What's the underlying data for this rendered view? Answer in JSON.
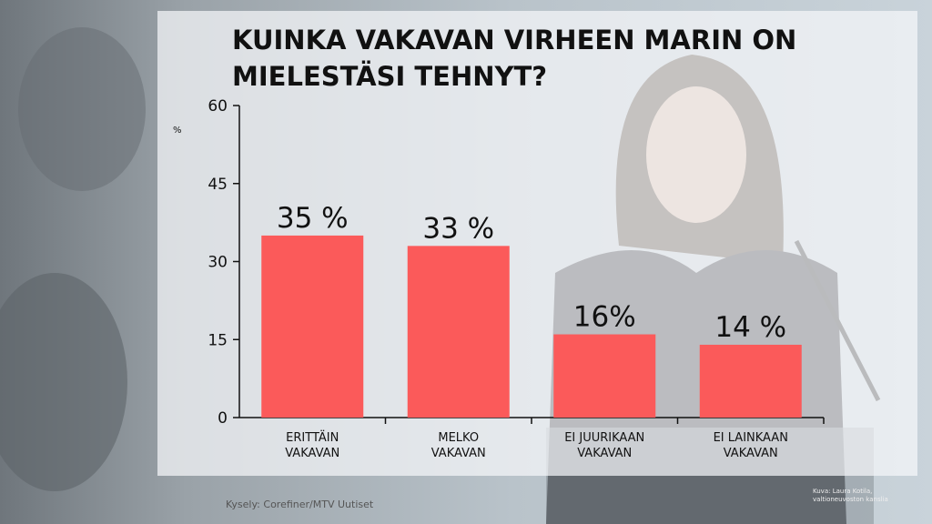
{
  "chart_data": {
    "type": "bar",
    "title": "KUINKA VAKAVAN VIRHEEN MARIN ON\nMIELESTÄSI TEHNYT?",
    "y_label": "%",
    "categories": [
      "ERITTÄIN\nVAKAVAN",
      "MELKO\nVAKAVAN",
      "EI JUURIKAAN\nVAKAVAN",
      "EI LAINKAAN\nVAKAVAN"
    ],
    "values": [
      35,
      33,
      16,
      14
    ],
    "value_labels": [
      "35 %",
      "33 %",
      "16%",
      "14 %"
    ],
    "color": "#fb5a5a",
    "ylim": [
      0,
      60
    ],
    "yticks": [
      0,
      15,
      30,
      45,
      60
    ],
    "source": "Kysely: Corefiner/MTV Uutiset",
    "photo_credit": "Kuva: Laura Kotila,\nvaltioneuvoston kanslia"
  }
}
